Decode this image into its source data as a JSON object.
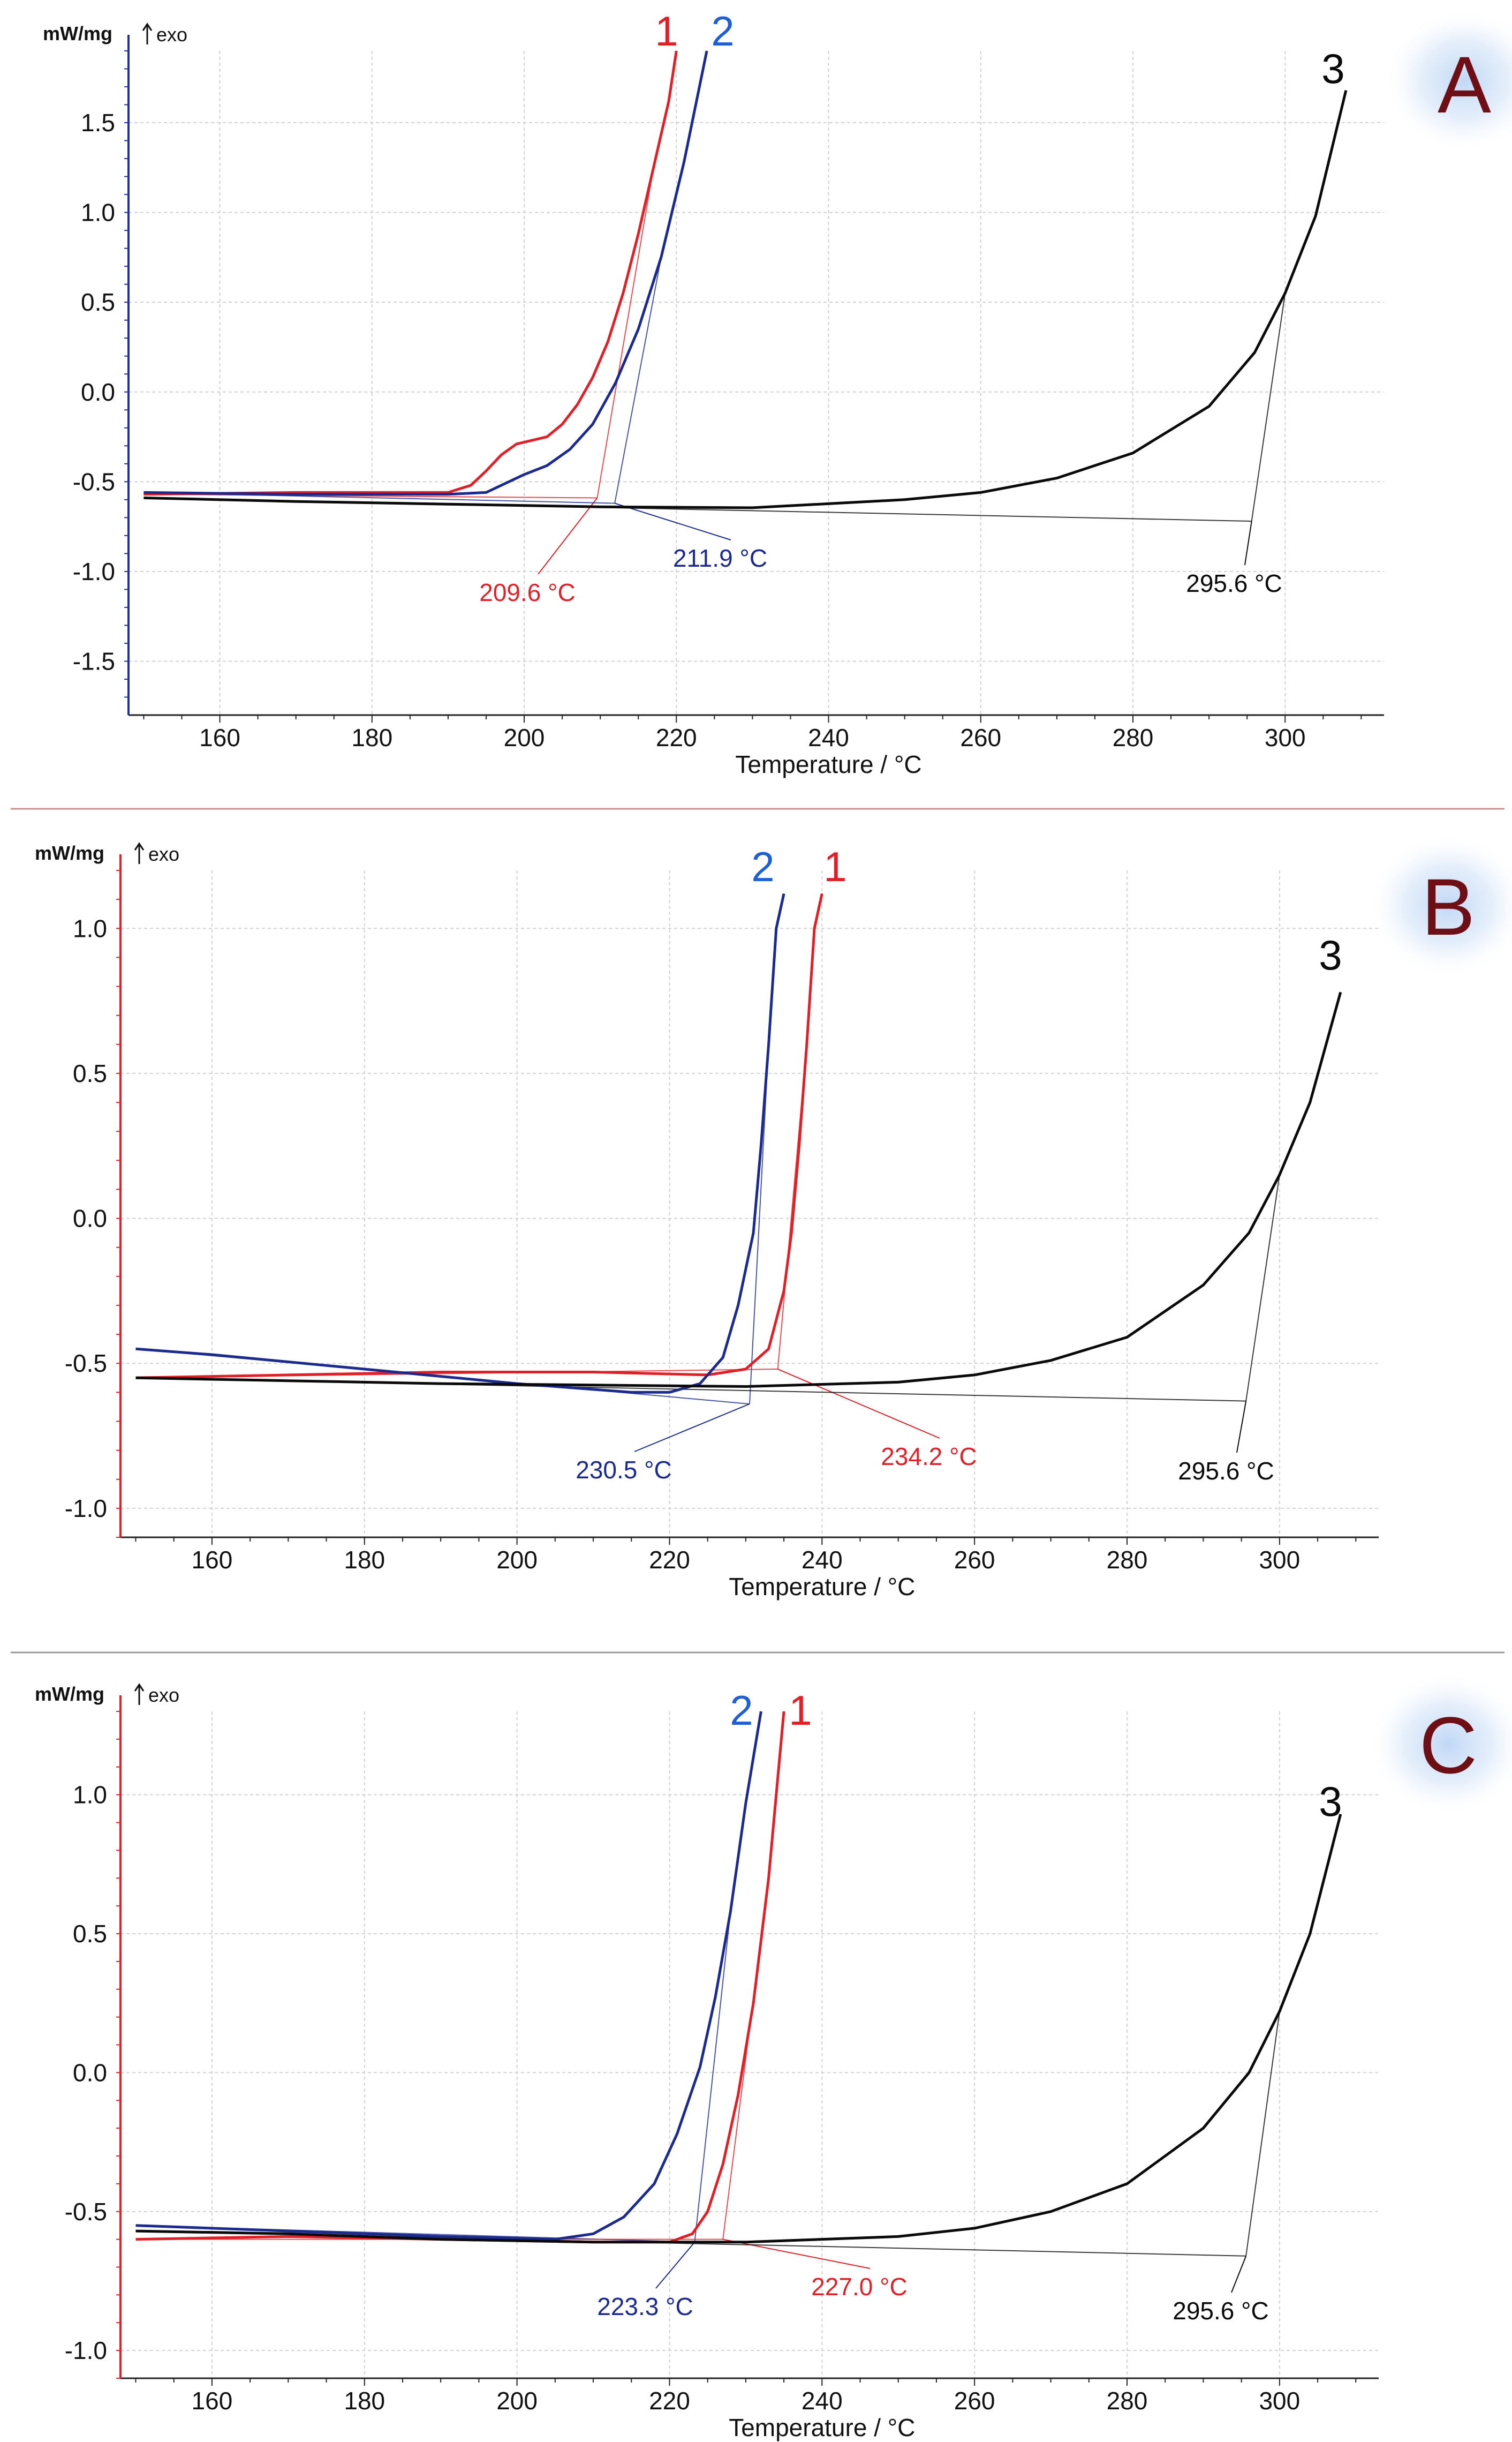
{
  "chart_data": [
    {
      "panel": "A",
      "type": "line",
      "xlabel": "Temperature / °C",
      "ylabel": "mW/mg",
      "exo_label": "exo",
      "xlim": [
        148,
        313
      ],
      "ylim": [
        -1.8,
        1.9
      ],
      "xticks": [
        160,
        180,
        200,
        220,
        240,
        260,
        280,
        300
      ],
      "x_tick_labels": [
        "160",
        "180",
        "200",
        "220",
        "240",
        "260",
        "280",
        "300"
      ],
      "yticks": [
        -1.5,
        -1.0,
        -0.5,
        0.0,
        0.5,
        1.0,
        1.5
      ],
      "y_tick_labels": [
        "-1.5",
        "-1.0",
        "-0.5",
        "0.0",
        "0.5",
        "1.0",
        "1.5"
      ],
      "grid": true,
      "y_axis_color": "#1f2f9e",
      "series": [
        {
          "name": "1",
          "color": "#e01f26",
          "points": [
            [
              150,
              -0.57
            ],
            [
              170,
              -0.56
            ],
            [
              190,
              -0.56
            ],
            [
              193,
              -0.52
            ],
            [
              195,
              -0.44
            ],
            [
              197,
              -0.35
            ],
            [
              199,
              -0.29
            ],
            [
              201,
              -0.27
            ],
            [
              203,
              -0.25
            ],
            [
              205,
              -0.18
            ],
            [
              207,
              -0.07
            ],
            [
              209,
              0.08
            ],
            [
              211,
              0.28
            ],
            [
              213,
              0.55
            ],
            [
              215,
              0.88
            ],
            [
              217,
              1.25
            ],
            [
              219,
              1.62
            ],
            [
              220,
              1.9
            ]
          ]
        },
        {
          "name": "2",
          "color": "#1b2a8f",
          "points": [
            [
              150,
              -0.56
            ],
            [
              170,
              -0.57
            ],
            [
              190,
              -0.57
            ],
            [
              195,
              -0.56
            ],
            [
              197,
              -0.52
            ],
            [
              200,
              -0.46
            ],
            [
              203,
              -0.41
            ],
            [
              206,
              -0.32
            ],
            [
              209,
              -0.18
            ],
            [
              212,
              0.05
            ],
            [
              215,
              0.35
            ],
            [
              218,
              0.75
            ],
            [
              221,
              1.28
            ],
            [
              224,
              1.9
            ]
          ]
        },
        {
          "name": "3",
          "color": "#0a0a0a",
          "points": [
            [
              150,
              -0.59
            ],
            [
              170,
              -0.61
            ],
            [
              190,
              -0.625
            ],
            [
              210,
              -0.64
            ],
            [
              230,
              -0.645
            ],
            [
              250,
              -0.6
            ],
            [
              260,
              -0.56
            ],
            [
              270,
              -0.48
            ],
            [
              280,
              -0.34
            ],
            [
              290,
              -0.08
            ],
            [
              296,
              0.22
            ],
            [
              300,
              0.55
            ],
            [
              304,
              0.98
            ],
            [
              308,
              1.68
            ]
          ]
        }
      ],
      "onsets": [
        {
          "label": "209.6 °C",
          "series": "1",
          "color": "#e01f26",
          "x": 209.6,
          "y": -0.59
        },
        {
          "label": "211.9 °C",
          "series": "2",
          "color": "#1b2a8f",
          "x": 211.9,
          "y": -0.62
        },
        {
          "label": "295.6 °C",
          "series": "3",
          "color": "#0a0a0a",
          "x": 295.6,
          "y": -0.72
        }
      ]
    },
    {
      "panel": "B",
      "type": "line",
      "xlabel": "Temperature / °C",
      "ylabel": "mW/mg",
      "exo_label": "exo",
      "xlim": [
        148,
        313
      ],
      "ylim": [
        -1.1,
        1.2
      ],
      "xticks": [
        160,
        180,
        200,
        220,
        240,
        260,
        280,
        300
      ],
      "x_tick_labels": [
        "160",
        "180",
        "200",
        "220",
        "240",
        "260",
        "280",
        "300"
      ],
      "yticks": [
        -1.0,
        -0.5,
        0.0,
        0.5,
        1.0
      ],
      "y_tick_labels": [
        "-1.0",
        "-0.5",
        "0.0",
        "0.5",
        "1.0"
      ],
      "grid": true,
      "y_axis_color": "#e01f26",
      "series": [
        {
          "name": "1",
          "color": "#e01f26",
          "points": [
            [
              150,
              -0.55
            ],
            [
              170,
              -0.54
            ],
            [
              190,
              -0.53
            ],
            [
              210,
              -0.53
            ],
            [
              225,
              -0.54
            ],
            [
              230,
              -0.52
            ],
            [
              233,
              -0.45
            ],
            [
              235,
              -0.25
            ],
            [
              236,
              -0.05
            ],
            [
              237,
              0.25
            ],
            [
              238,
              0.6
            ],
            [
              239,
              1.0
            ],
            [
              240,
              1.12
            ]
          ]
        },
        {
          "name": "2",
          "color": "#1b2a8f",
          "points": [
            [
              150,
              -0.45
            ],
            [
              160,
              -0.47
            ],
            [
              180,
              -0.52
            ],
            [
              200,
              -0.57
            ],
            [
              215,
              -0.6
            ],
            [
              220,
              -0.6
            ],
            [
              224,
              -0.57
            ],
            [
              227,
              -0.48
            ],
            [
              229,
              -0.3
            ],
            [
              231,
              -0.05
            ],
            [
              232,
              0.25
            ],
            [
              233,
              0.6
            ],
            [
              234,
              1.0
            ],
            [
              235,
              1.12
            ]
          ]
        },
        {
          "name": "3",
          "color": "#0a0a0a",
          "points": [
            [
              150,
              -0.55
            ],
            [
              170,
              -0.56
            ],
            [
              190,
              -0.57
            ],
            [
              210,
              -0.575
            ],
            [
              230,
              -0.58
            ],
            [
              250,
              -0.565
            ],
            [
              260,
              -0.54
            ],
            [
              270,
              -0.49
            ],
            [
              280,
              -0.41
            ],
            [
              290,
              -0.23
            ],
            [
              296,
              -0.05
            ],
            [
              300,
              0.15
            ],
            [
              304,
              0.4
            ],
            [
              308,
              0.78
            ]
          ]
        }
      ],
      "onsets": [
        {
          "label": "230.5 °C",
          "series": "2",
          "color": "#1b2a8f",
          "x": 230.5,
          "y": -0.64
        },
        {
          "label": "234.2 °C",
          "series": "1",
          "color": "#e01f26",
          "x": 234.2,
          "y": -0.52
        },
        {
          "label": "295.6 °C",
          "series": "3",
          "color": "#0a0a0a",
          "x": 295.6,
          "y": -0.63
        }
      ]
    },
    {
      "panel": "C",
      "type": "line",
      "xlabel": "Temperature / °C",
      "ylabel": "mW/mg",
      "exo_label": "exo",
      "xlim": [
        148,
        313
      ],
      "ylim": [
        -1.1,
        1.3
      ],
      "xticks": [
        160,
        180,
        200,
        220,
        240,
        260,
        280,
        300
      ],
      "x_tick_labels": [
        "160",
        "180",
        "200",
        "220",
        "240",
        "260",
        "280",
        "300"
      ],
      "yticks": [
        -1.0,
        -0.5,
        0.0,
        0.5,
        1.0
      ],
      "y_tick_labels": [
        "-1.0",
        "-0.5",
        "0.0",
        "0.5",
        "1.0"
      ],
      "grid": true,
      "y_axis_color": "#e01f26",
      "series": [
        {
          "name": "1",
          "color": "#e01f26",
          "points": [
            [
              150,
              -0.6
            ],
            [
              170,
              -0.59
            ],
            [
              190,
              -0.6
            ],
            [
              210,
              -0.61
            ],
            [
              220,
              -0.61
            ],
            [
              223,
              -0.58
            ],
            [
              225,
              -0.5
            ],
            [
              227,
              -0.33
            ],
            [
              229,
              -0.08
            ],
            [
              231,
              0.25
            ],
            [
              233,
              0.7
            ],
            [
              234,
              1.0
            ],
            [
              235,
              1.3
            ]
          ]
        },
        {
          "name": "2",
          "color": "#1b2a8f",
          "points": [
            [
              150,
              -0.55
            ],
            [
              170,
              -0.57
            ],
            [
              190,
              -0.59
            ],
            [
              205,
              -0.6
            ],
            [
              210,
              -0.58
            ],
            [
              214,
              -0.52
            ],
            [
              218,
              -0.4
            ],
            [
              221,
              -0.22
            ],
            [
              224,
              0.02
            ],
            [
              226,
              0.27
            ],
            [
              228,
              0.58
            ],
            [
              230,
              0.97
            ],
            [
              232,
              1.3
            ]
          ]
        },
        {
          "name": "3",
          "color": "#0a0a0a",
          "points": [
            [
              150,
              -0.57
            ],
            [
              170,
              -0.58
            ],
            [
              190,
              -0.6
            ],
            [
              210,
              -0.61
            ],
            [
              230,
              -0.61
            ],
            [
              250,
              -0.59
            ],
            [
              260,
              -0.56
            ],
            [
              270,
              -0.5
            ],
            [
              280,
              -0.4
            ],
            [
              290,
              -0.2
            ],
            [
              296,
              0.0
            ],
            [
              300,
              0.22
            ],
            [
              304,
              0.5
            ],
            [
              308,
              0.93
            ]
          ]
        }
      ],
      "onsets": [
        {
          "label": "223.3 °C",
          "series": "2",
          "color": "#1b2a8f",
          "x": 223.3,
          "y": -0.61
        },
        {
          "label": "227.0 °C",
          "series": "1",
          "color": "#e01f26",
          "x": 227.0,
          "y": -0.6
        },
        {
          "label": "295.6 °C",
          "series": "3",
          "color": "#0a0a0a",
          "x": 295.6,
          "y": -0.66
        }
      ]
    }
  ]
}
